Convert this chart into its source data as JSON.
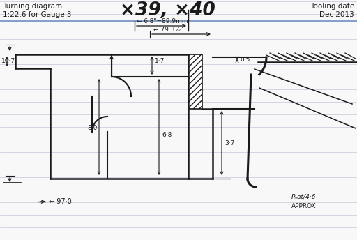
{
  "title_left": "Turning diagram\n1:22.6 for Gauge 3",
  "title_right": "Tooling date\nDec 2013",
  "title_center": "×39, ×40",
  "bg_color": "#f8f8f8",
  "line_color": "#1a1a1a",
  "annotation_69": "← 6'8\"=89.9mm",
  "annotation_793": "← 79.3½",
  "annotation_17": "1·7",
  "annotation_05": "0·5",
  "annotation_107": "10·7",
  "annotation_80": "8·0",
  "annotation_68": "6·8",
  "annotation_37": "3·7",
  "annotation_970": "← 97·0",
  "annotation_pnat": "Pₙat/4·6",
  "annotation_approx": "APPROX",
  "ruled_color": "#c0c8d8",
  "blue_line_color": "#7090c0"
}
